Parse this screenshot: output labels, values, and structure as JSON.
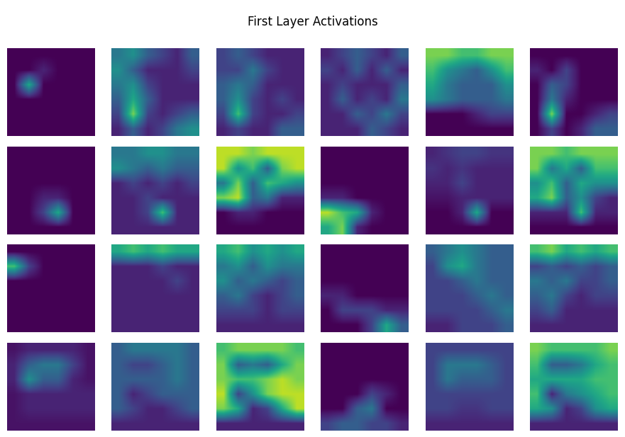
{
  "chart_data": {
    "type": "heatmap_grid",
    "title": "First Layer Activations",
    "tick_labels": false,
    "zlim": [
      0,
      1
    ],
    "panels": [
      [
        [
          [
            0,
            0,
            0,
            0,
            0,
            0
          ],
          [
            0,
            0,
            0.1,
            0,
            0,
            0
          ],
          [
            0,
            0.6,
            0,
            0,
            0,
            0
          ],
          [
            0,
            0,
            0,
            0,
            0,
            0
          ],
          [
            0,
            0,
            0,
            0,
            0,
            0
          ],
          [
            0,
            0,
            0,
            0,
            0,
            0
          ]
        ],
        [
          [
            0.4,
            0.5,
            0.3,
            0.2,
            0.1,
            0.3
          ],
          [
            0.5,
            0.3,
            0.1,
            0.1,
            0.1,
            0.2
          ],
          [
            0.4,
            0.5,
            0.2,
            0.1,
            0.1,
            0.1
          ],
          [
            0.3,
            0.6,
            0.3,
            0.1,
            0.1,
            0.1
          ],
          [
            0.2,
            0.8,
            0.2,
            0.1,
            0.2,
            0.3
          ],
          [
            0.1,
            0.3,
            0.1,
            0.2,
            0.4,
            0.5
          ]
        ],
        [
          [
            0.2,
            0.3,
            0.2,
            0.1,
            0.1,
            0.1
          ],
          [
            0.2,
            0.2,
            0.4,
            0.2,
            0.1,
            0.1
          ],
          [
            0.3,
            0.4,
            0.3,
            0.1,
            0.1,
            0.1
          ],
          [
            0.3,
            0.5,
            0.2,
            0.1,
            0.2,
            0.1
          ],
          [
            0.2,
            0.7,
            0.2,
            0.1,
            0.1,
            0.2
          ],
          [
            0.1,
            0.2,
            0.1,
            0.1,
            0.3,
            0.3
          ]
        ],
        [
          [
            0.1,
            0.2,
            0.3,
            0.2,
            0.1,
            0.3
          ],
          [
            0.2,
            0.1,
            0.3,
            0.1,
            0.3,
            0.1
          ],
          [
            0.1,
            0.2,
            0.1,
            0.1,
            0.1,
            0.3
          ],
          [
            0.1,
            0.3,
            0.1,
            0.2,
            0.1,
            0.4
          ],
          [
            0.1,
            0.1,
            0.3,
            0.2,
            0.4,
            0.2
          ],
          [
            0.1,
            0.1,
            0.1,
            0.3,
            0.2,
            0.1
          ]
        ],
        [
          [
            0.8,
            0.8,
            0.7,
            0.7,
            0.8,
            0.8
          ],
          [
            0.7,
            0.5,
            0.4,
            0.3,
            0.5,
            0.7
          ],
          [
            0.6,
            0.4,
            0.3,
            0.3,
            0.3,
            0.5
          ],
          [
            0.5,
            0.4,
            0.3,
            0.3,
            0.3,
            0.4
          ],
          [
            0.0,
            0.0,
            0.0,
            0.1,
            0.2,
            0.2
          ],
          [
            0.0,
            0.0,
            0.0,
            0.0,
            0.0,
            0.0
          ]
        ],
        [
          [
            0,
            0,
            0,
            0,
            0,
            0
          ],
          [
            0.1,
            0,
            0.2,
            0,
            0,
            0
          ],
          [
            0,
            0.3,
            0.2,
            0,
            0,
            0
          ],
          [
            0,
            0.4,
            0.1,
            0,
            0,
            0
          ],
          [
            0,
            0.8,
            0,
            0,
            0.1,
            0.2
          ],
          [
            0,
            0.2,
            0,
            0.1,
            0.3,
            0.3
          ]
        ]
      ],
      [
        [
          [
            0,
            0,
            0,
            0,
            0,
            0
          ],
          [
            0,
            0,
            0,
            0,
            0,
            0
          ],
          [
            0,
            0,
            0,
            0,
            0,
            0
          ],
          [
            0,
            0,
            0.1,
            0.1,
            0,
            0
          ],
          [
            0,
            0,
            0.2,
            0.6,
            0,
            0
          ],
          [
            0,
            0,
            0,
            0,
            0,
            0
          ]
        ],
        [
          [
            0.4,
            0.4,
            0.5,
            0.5,
            0.4,
            0.4
          ],
          [
            0.5,
            0.4,
            0.3,
            0.4,
            0.3,
            0.3
          ],
          [
            0.1,
            0.2,
            0.1,
            0.2,
            0.1,
            0.2
          ],
          [
            0.1,
            0.1,
            0.2,
            0.1,
            0.1,
            0.1
          ],
          [
            0.1,
            0.1,
            0.2,
            0.7,
            0.1,
            0.1
          ],
          [
            0.1,
            0.1,
            0.1,
            0.1,
            0.1,
            0.1
          ]
        ],
        [
          [
            0.9,
            0.9,
            0.8,
            0.9,
            0.9,
            0.9
          ],
          [
            0.9,
            0.5,
            0.7,
            0.3,
            0.8,
            0.9
          ],
          [
            0.4,
            0.8,
            0.3,
            0.7,
            0.6,
            0.5
          ],
          [
            0.8,
            0.9,
            0.3,
            0.4,
            0.1,
            0.1
          ],
          [
            0.0,
            0.1,
            0.1,
            0.0,
            0.0,
            0.0
          ],
          [
            0.0,
            0.0,
            0.0,
            0.0,
            0.0,
            0.0
          ]
        ],
        [
          [
            0,
            0,
            0,
            0,
            0,
            0
          ],
          [
            0,
            0,
            0,
            0,
            0,
            0
          ],
          [
            0,
            0,
            0,
            0,
            0,
            0
          ],
          [
            0.1,
            0.1,
            0,
            0,
            0,
            0
          ],
          [
            0.9,
            0.7,
            0.6,
            0.1,
            0,
            0
          ],
          [
            0.6,
            0.8,
            0.1,
            0,
            0,
            0
          ]
        ],
        [
          [
            0.1,
            0.15,
            0.2,
            0.2,
            0.15,
            0.15
          ],
          [
            0.15,
            0.1,
            0.15,
            0.1,
            0.1,
            0.1
          ],
          [
            0.1,
            0.1,
            0.2,
            0.1,
            0.1,
            0.1
          ],
          [
            0.05,
            0.05,
            0.1,
            0.1,
            0.1,
            0.1
          ],
          [
            0,
            0,
            0.1,
            0.6,
            0,
            0
          ],
          [
            0,
            0,
            0,
            0,
            0,
            0
          ]
        ],
        [
          [
            0.8,
            0.8,
            0.7,
            0.8,
            0.8,
            0.8
          ],
          [
            0.8,
            0.4,
            0.6,
            0.3,
            0.7,
            0.7
          ],
          [
            0.5,
            0.7,
            0.3,
            0.6,
            0.5,
            0.5
          ],
          [
            0.6,
            0.8,
            0.3,
            0.5,
            0.2,
            0.1
          ],
          [
            0.1,
            0.1,
            0.1,
            0.7,
            0.1,
            0.1
          ],
          [
            0,
            0,
            0,
            0,
            0,
            0
          ]
        ]
      ],
      [
        [
          [
            0,
            0,
            0,
            0,
            0,
            0
          ],
          [
            0.7,
            0.2,
            0,
            0,
            0,
            0
          ],
          [
            0,
            0,
            0,
            0,
            0,
            0
          ],
          [
            0,
            0,
            0,
            0,
            0,
            0
          ],
          [
            0,
            0,
            0,
            0,
            0,
            0
          ],
          [
            0,
            0,
            0,
            0,
            0,
            0
          ]
        ],
        [
          [
            0.6,
            0.7,
            0.6,
            0.7,
            0.6,
            0.6
          ],
          [
            0.1,
            0.1,
            0.1,
            0.2,
            0.1,
            0.1
          ],
          [
            0.1,
            0.1,
            0.1,
            0.1,
            0.2,
            0.1
          ],
          [
            0.1,
            0.1,
            0.1,
            0.1,
            0.1,
            0.1
          ],
          [
            0.1,
            0.1,
            0.1,
            0.1,
            0.1,
            0.1
          ],
          [
            0.1,
            0.1,
            0.1,
            0.1,
            0.1,
            0.1
          ]
        ],
        [
          [
            0.6,
            0.7,
            0.5,
            0.6,
            0.5,
            0.6
          ],
          [
            0.4,
            0.5,
            0.3,
            0.5,
            0.4,
            0.4
          ],
          [
            0.5,
            0.3,
            0.4,
            0.3,
            0.2,
            0.3
          ],
          [
            0.3,
            0.4,
            0.2,
            0.1,
            0.2,
            0.3
          ],
          [
            0.2,
            0.2,
            0.2,
            0.1,
            0.2,
            0.2
          ],
          [
            0.1,
            0.1,
            0.1,
            0.1,
            0.1,
            0.1
          ]
        ],
        [
          [
            0,
            0,
            0,
            0,
            0,
            0
          ],
          [
            0,
            0,
            0,
            0,
            0,
            0
          ],
          [
            0,
            0,
            0,
            0,
            0,
            0
          ],
          [
            0.1,
            0.1,
            0,
            0,
            0,
            0
          ],
          [
            0,
            0.2,
            0.2,
            0.2,
            0.1,
            0.1
          ],
          [
            0,
            0,
            0,
            0.2,
            0.6,
            0.3
          ]
        ],
        [
          [
            0.3,
            0.4,
            0.5,
            0.4,
            0.3,
            0.3
          ],
          [
            0.2,
            0.5,
            0.6,
            0.4,
            0.3,
            0.3
          ],
          [
            0.2,
            0.2,
            0.3,
            0.4,
            0.3,
            0.3
          ],
          [
            0.2,
            0.2,
            0.2,
            0.3,
            0.4,
            0.3
          ],
          [
            0.2,
            0.2,
            0.2,
            0.2,
            0.3,
            0.4
          ],
          [
            0.1,
            0.1,
            0.2,
            0.2,
            0.2,
            0.3
          ]
        ],
        [
          [
            0.7,
            0.8,
            0.6,
            0.7,
            0.6,
            0.7
          ],
          [
            0.2,
            0.3,
            0.2,
            0.3,
            0.2,
            0.3
          ],
          [
            0.4,
            0.3,
            0.4,
            0.2,
            0.2,
            0.3
          ],
          [
            0.3,
            0.4,
            0.2,
            0.1,
            0.2,
            0.2
          ],
          [
            0.2,
            0.3,
            0.1,
            0.1,
            0.1,
            0.1
          ],
          [
            0.1,
            0.1,
            0.1,
            0.1,
            0.1,
            0.1
          ]
        ]
      ],
      [
        [
          [
            0.05,
            0.1,
            0.1,
            0.1,
            0.1,
            0.05
          ],
          [
            0.1,
            0.3,
            0.4,
            0.4,
            0.2,
            0.05
          ],
          [
            0.1,
            0.5,
            0.3,
            0.3,
            0.1,
            0.05
          ],
          [
            0.05,
            0.1,
            0.1,
            0.1,
            0.1,
            0.1
          ],
          [
            0.05,
            0.1,
            0.1,
            0.1,
            0.1,
            0.1
          ],
          [
            0.05,
            0.05,
            0.05,
            0.05,
            0.05,
            0.05
          ]
        ],
        [
          [
            0.3,
            0.4,
            0.4,
            0.4,
            0.4,
            0.3
          ],
          [
            0.3,
            0.2,
            0.2,
            0.3,
            0.4,
            0.3
          ],
          [
            0.3,
            0.3,
            0.3,
            0.3,
            0.4,
            0.3
          ],
          [
            0.3,
            0.1,
            0.2,
            0.3,
            0.3,
            0.3
          ],
          [
            0.3,
            0.2,
            0.1,
            0.1,
            0.2,
            0.3
          ],
          [
            0.1,
            0.1,
            0.1,
            0.1,
            0.1,
            0.1
          ]
        ],
        [
          [
            0.7,
            0.8,
            0.8,
            0.8,
            0.8,
            0.7
          ],
          [
            0.8,
            0.3,
            0.4,
            0.3,
            0.6,
            0.8
          ],
          [
            0.8,
            0.7,
            0.7,
            0.8,
            0.9,
            0.8
          ],
          [
            0.9,
            0.2,
            0.5,
            0.8,
            0.9,
            0.9
          ],
          [
            0.8,
            0.6,
            0.1,
            0.2,
            0.6,
            0.9
          ],
          [
            0.1,
            0.1,
            0.1,
            0.1,
            0.1,
            0.1
          ]
        ],
        [
          [
            0,
            0,
            0,
            0,
            0,
            0
          ],
          [
            0,
            0,
            0,
            0,
            0,
            0
          ],
          [
            0,
            0,
            0,
            0,
            0,
            0
          ],
          [
            0,
            0,
            0,
            0.2,
            0.1,
            0
          ],
          [
            0,
            0,
            0.3,
            0.4,
            0,
            0
          ],
          [
            0.2,
            0.3,
            0.3,
            0.2,
            0.2,
            0.1
          ]
        ],
        [
          [
            0.2,
            0.2,
            0.2,
            0.2,
            0.2,
            0.2
          ],
          [
            0.2,
            0.4,
            0.4,
            0.4,
            0.3,
            0.2
          ],
          [
            0.2,
            0.4,
            0.3,
            0.3,
            0.3,
            0.2
          ],
          [
            0.2,
            0.2,
            0.2,
            0.2,
            0.2,
            0.2
          ],
          [
            0.2,
            0.2,
            0.15,
            0.15,
            0.2,
            0.2
          ],
          [
            0.1,
            0.1,
            0.1,
            0.1,
            0.1,
            0.1
          ]
        ],
        [
          [
            0.8,
            0.7,
            0.7,
            0.7,
            0.7,
            0.8
          ],
          [
            0.7,
            0.3,
            0.3,
            0.4,
            0.6,
            0.7
          ],
          [
            0.6,
            0.6,
            0.6,
            0.6,
            0.7,
            0.7
          ],
          [
            0.7,
            0.1,
            0.4,
            0.5,
            0.6,
            0.7
          ],
          [
            0.6,
            0.5,
            0.1,
            0.2,
            0.5,
            0.6
          ],
          [
            0.1,
            0.1,
            0.1,
            0.1,
            0.1,
            0.1
          ]
        ]
      ]
    ]
  }
}
